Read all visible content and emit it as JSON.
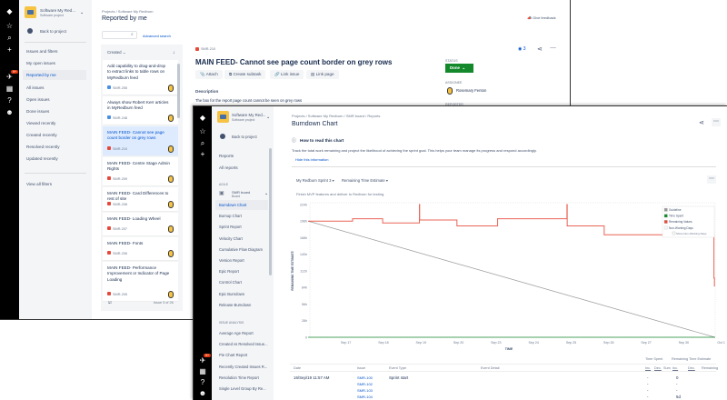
{
  "back_window": {
    "project": {
      "name": "Software My Red...",
      "type": "Software project"
    },
    "back_to_project": "Back to project",
    "sidebar_heading": "Issues and filters",
    "sidebar_items": [
      "My open issues",
      "Reported by me",
      "All issues",
      "Open issues",
      "Done issues",
      "Viewed recently",
      "Created recently",
      "Resolved recently",
      "Updated recently"
    ],
    "view_all_filters": "View all filters",
    "breadcrumb": [
      "Projects",
      "Software My Redburn"
    ],
    "page_title": "Reported by me",
    "give_feedback": "Give feedback",
    "search_placeholder": "",
    "advanced_search": "Advanced search",
    "sort_label": "Created",
    "issues": [
      {
        "title": "Add capability to drag-and-drop to extract links to table rows on MyRedburn feed",
        "key": "SMR-255",
        "type": "story"
      },
      {
        "title": "Always show Robert Kerr articles in MyRedburn feed",
        "key": "SMR-248",
        "type": "story"
      },
      {
        "title": "MAIN FEED- Cannot see page count border on grey rows",
        "key": "SMR-210",
        "type": "bug",
        "selected": true
      },
      {
        "title": "MAIN FEED- Centre Stage Admin Rights",
        "key": "SMR-209",
        "type": "bug"
      },
      {
        "title": "MAIN FEED- Card Differences to rest of site",
        "key": "SMR-208",
        "type": "bug"
      },
      {
        "title": "MAIN FEED- Loading Wheel",
        "key": "SMR-207",
        "type": "bug"
      },
      {
        "title": "MAIN FEED- Fonts",
        "key": "SMR-206",
        "type": "bug"
      },
      {
        "title": "MAIN FEED- Performance Improvement or Indicator of Page Loading",
        "key": "SMR-205",
        "type": "bug"
      }
    ],
    "pagination": "Issue 3 of 26",
    "detail": {
      "key": "SMR-210",
      "title": "MAIN FEED- Cannot see page count border on grey rows",
      "watchers": "3",
      "actions": [
        "Attach",
        "Create subtask",
        "Link issue",
        "Link page"
      ],
      "description_label": "Description",
      "description": "The box for the report page count cannot be seen on grey rows",
      "status_label": "STATUS",
      "status": "Done",
      "assignee_label": "ASSIGNEE",
      "assignee": "Rosemary Fenton",
      "reporter_label": "REPORTER"
    },
    "notification_count": "9+"
  },
  "front_window": {
    "project": {
      "name": "Software My Red...",
      "type": "Software project"
    },
    "back_to_project": "Back to project",
    "reports_heading": "Reports",
    "all_reports": "All reports",
    "agile_label": "AGILE",
    "board": {
      "name": "SMR board",
      "type": "Board"
    },
    "agile_items": [
      "Burndown Chart",
      "Burnup Chart",
      "Sprint Report",
      "Velocity Chart",
      "Cumulative Flow Diagram",
      "Version Report",
      "Epic Report",
      "Control Chart",
      "Epic Burndown",
      "Release Burndown"
    ],
    "issue_analysis_label": "ISSUE ANALYSIS",
    "analysis_items": [
      "Average Age Report",
      "Created vs Resolved Issue...",
      "Pie Chart Report",
      "Recently Created Issues R...",
      "Resolution Time Report",
      "Single Level Group By Re..."
    ],
    "breadcrumb": [
      "Projects",
      "Software My Redburn",
      "SMR board",
      "Reports"
    ],
    "page_title": "Burndown Chart",
    "how_to_title": "How to read this chart",
    "how_to_text": "Track the total work remaining and project the likelihood of achieving the sprint goal. This helps your team manage its progress and respond accordingly.",
    "hide_info": "Hide this information",
    "sprint_select": "My Redburn Sprint 3",
    "estimate_select": "Remaining Time Estimate",
    "sprint_goal": "Finish MVP features and deliver to Redburn for testing.",
    "notification_count": "9+",
    "table": {
      "group_headers": [
        "Time Spent",
        "Remaining Time Estimate"
      ],
      "headers": [
        "Date",
        "Issue",
        "Event Type",
        "Event Detail",
        "Inc.",
        "Dec.",
        "Sum",
        "Inc.",
        "Dec.",
        "Remaining"
      ],
      "rows": [
        {
          "date": "16/Sep/19 11:57 AM",
          "issues": [
            "SMR-100",
            "SMR-102",
            "SMR-103",
            "SMR-104",
            "SMR-105"
          ],
          "event_type": "Sprint start",
          "event_detail": "",
          "ts_inc": [
            "-",
            "-",
            "-",
            "-"
          ],
          "re_inc": [
            "0",
            "-",
            "-",
            "5d"
          ]
        }
      ]
    }
  },
  "colors": {
    "guideline": "#999999",
    "time_spent": "#14892c",
    "remaining": "#e5493a",
    "status_done": "#14892c",
    "link": "#0052cc",
    "nav": "#000000"
  },
  "chart_data": {
    "type": "line",
    "title": "",
    "xlabel": "TIME",
    "ylabel": "REMAINING TIME ESTIMATE",
    "ylim": [
      0,
      224
    ],
    "y_ticks": [
      "0",
      "28h",
      "56h",
      "84h",
      "112h",
      "140h",
      "168h",
      "196h",
      "224h"
    ],
    "x_ticks": [
      "Sep 17",
      "Sep 18",
      "Sep 19",
      "Sep 20",
      "Sep 23",
      "Sep 24",
      "Sep 25",
      "Sep 26",
      "Sep 27",
      "Sep 30",
      "Oct 1"
    ],
    "non_working_days_hidden": true,
    "grid": false,
    "legend": {
      "placement": "top-right",
      "entries": [
        "Guideline",
        "Time Spent",
        "Remaining Values",
        "Non-Working Days"
      ],
      "checkbox": "Show Non-Working Days"
    },
    "series": [
      {
        "name": "Guideline",
        "points": [
          [
            "Sep 16 11:57",
            196
          ],
          [
            "Oct 1 08:00",
            0
          ]
        ]
      },
      {
        "name": "Time Spent",
        "points": [
          [
            "Sep 16 11:57",
            0
          ],
          [
            "Oct 1 08:00",
            0
          ]
        ]
      },
      {
        "name": "Remaining Values",
        "step": true,
        "points": [
          [
            "Sep 16 11:57",
            196
          ],
          [
            "Sep 17 16:15",
            200
          ],
          [
            "Sep 18 11:30",
            193
          ],
          [
            "Sep 19 11:00",
            224
          ],
          [
            "Sep 19 11:10",
            198
          ],
          [
            "Sep 20 11:00",
            188
          ],
          [
            "Sep 23 13:00",
            200
          ],
          [
            "Sep 25 09:20",
            224
          ],
          [
            "Sep 25 09:30",
            188
          ],
          [
            "Sep 26 09:10",
            173
          ],
          [
            "Oct 1 07:20",
            100
          ],
          [
            "Oct 1 07:40",
            86
          ]
        ]
      }
    ]
  }
}
